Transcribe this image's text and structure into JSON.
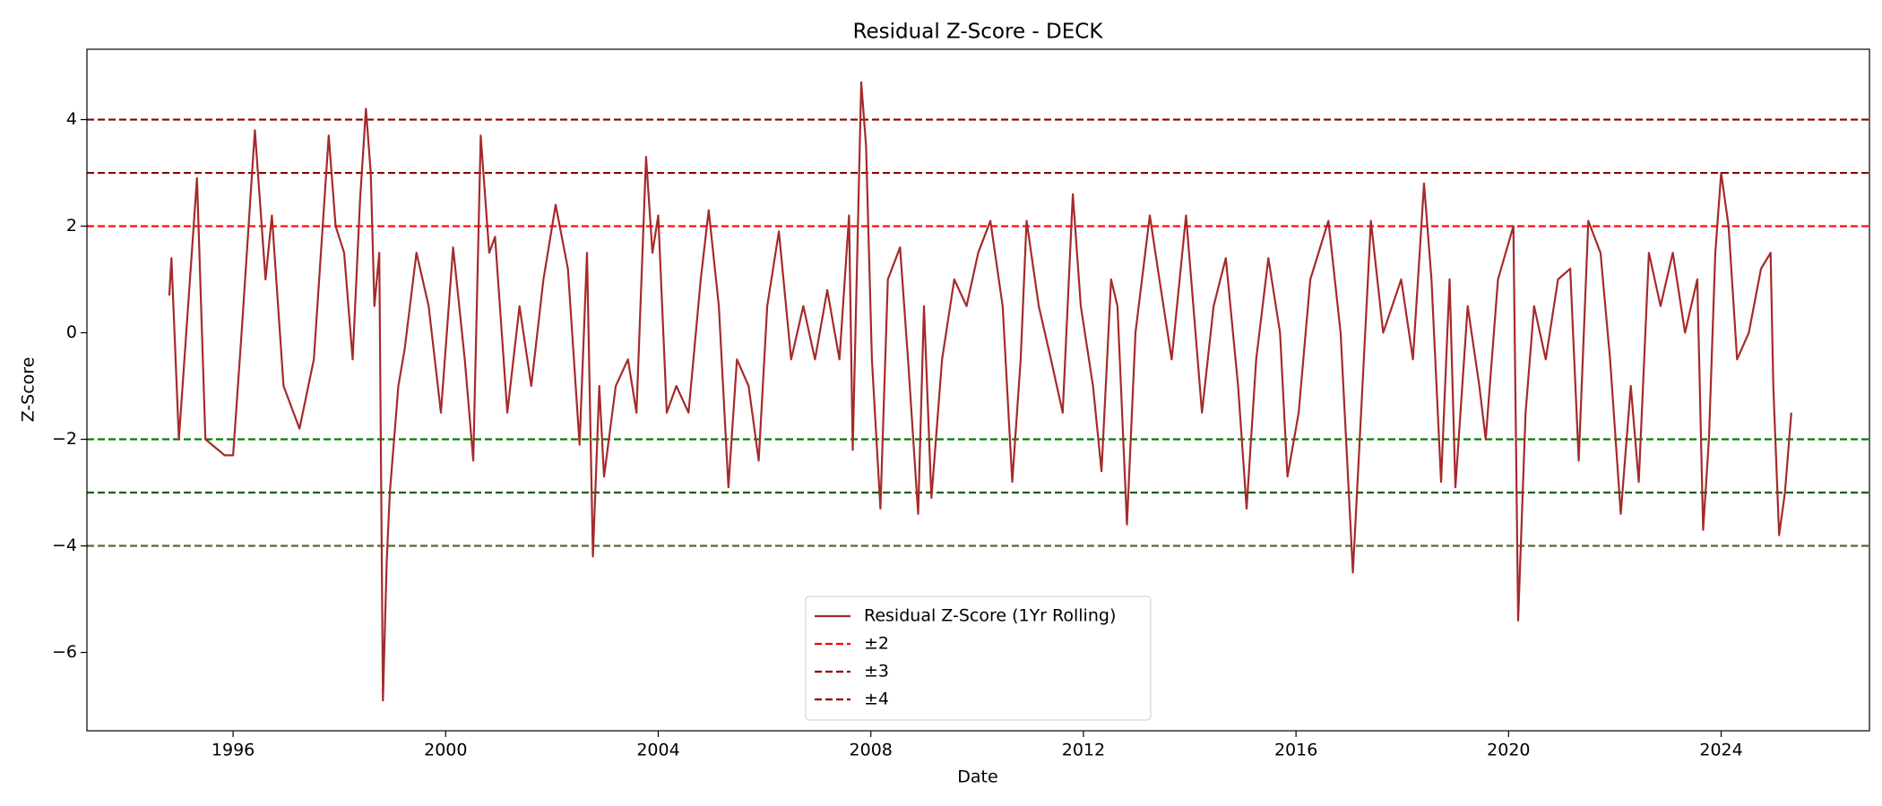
{
  "chart_data": {
    "type": "line",
    "title": "Residual Z-Score - DECK",
    "x_label": "Date",
    "y_label": "Z-Score",
    "xlim": [
      1993.25,
      2026.79
    ],
    "ylim": [
      -7.47,
      5.32
    ],
    "xticks": [
      1996,
      2000,
      2004,
      2008,
      2012,
      2016,
      2020,
      2024
    ],
    "yticks": [
      {
        "value": -6,
        "label": "−6"
      },
      {
        "value": -4,
        "label": "−4"
      },
      {
        "value": -2,
        "label": "−2"
      },
      0,
      2,
      4
    ],
    "legend": "lower center",
    "series": [
      {
        "name": "Residual Z-Score (1Yr Rolling)",
        "color": "#a52a2a",
        "x": [
          1994.8,
          1994.84,
          1994.98,
          1995.32,
          1995.48,
          1995.84,
          1996.0,
          1996.16,
          1996.41,
          1996.61,
          1996.73,
          1996.95,
          1997.25,
          1997.52,
          1997.8,
          1997.93,
          1998.09,
          1998.25,
          1998.39,
          1998.5,
          1998.59,
          1998.66,
          1998.75,
          1998.82,
          1998.89,
          1998.95,
          1999.11,
          1999.23,
          1999.45,
          1999.68,
          1999.91,
          2000.14,
          2000.36,
          2000.52,
          2000.66,
          2000.82,
          2000.93,
          2001.16,
          2001.39,
          2001.61,
          2001.84,
          2002.07,
          2002.3,
          2002.52,
          2002.66,
          2002.77,
          2002.89,
          2002.98,
          2003.2,
          2003.43,
          2003.59,
          2003.77,
          2003.89,
          2004.0,
          2004.16,
          2004.34,
          2004.57,
          2004.8,
          2004.95,
          2005.14,
          2005.32,
          2005.48,
          2005.7,
          2005.89,
          2006.05,
          2006.27,
          2006.5,
          2006.73,
          2006.95,
          2007.18,
          2007.41,
          2007.59,
          2007.66,
          2007.82,
          2007.91,
          2008.02,
          2008.18,
          2008.32,
          2008.55,
          2008.7,
          2008.89,
          2009.0,
          2009.14,
          2009.34,
          2009.57,
          2009.8,
          2010.02,
          2010.25,
          2010.48,
          2010.66,
          2010.82,
          2010.93,
          2011.16,
          2011.39,
          2011.61,
          2011.8,
          2011.95,
          2012.18,
          2012.34,
          2012.52,
          2012.64,
          2012.82,
          2012.98,
          2013.25,
          2013.43,
          2013.66,
          2013.93,
          2014.11,
          2014.23,
          2014.45,
          2014.68,
          2014.91,
          2015.07,
          2015.25,
          2015.48,
          2015.7,
          2015.84,
          2016.05,
          2016.27,
          2016.61,
          2016.84,
          2017.07,
          2017.25,
          2017.41,
          2017.64,
          2017.98,
          2018.2,
          2018.41,
          2018.55,
          2018.73,
          2018.89,
          2019.0,
          2019.23,
          2019.45,
          2019.57,
          2019.8,
          2020.09,
          2020.18,
          2020.32,
          2020.48,
          2020.7,
          2020.93,
          2021.16,
          2021.32,
          2021.5,
          2021.73,
          2021.91,
          2022.11,
          2022.3,
          2022.45,
          2022.64,
          2022.86,
          2023.09,
          2023.32,
          2023.55,
          2023.66,
          2023.77,
          2023.89,
          2024.0,
          2024.14,
          2024.3,
          2024.52,
          2024.75,
          2024.93,
          2024.98,
          2025.09,
          2025.2,
          2025.32
        ],
        "values": [
          0.7,
          1.4,
          -2.0,
          2.9,
          -2.0,
          -2.3,
          -2.3,
          0.0,
          3.8,
          1.0,
          2.2,
          -1.0,
          -1.8,
          -0.5,
          3.7,
          2.0,
          1.5,
          -0.5,
          2.5,
          4.2,
          3.0,
          0.5,
          1.5,
          -6.9,
          -4.3,
          -3.0,
          -1.0,
          -0.3,
          1.5,
          0.5,
          -1.5,
          1.6,
          -0.5,
          -2.4,
          3.7,
          1.5,
          1.8,
          -1.5,
          0.5,
          -1.0,
          1.0,
          2.4,
          1.2,
          -2.1,
          1.5,
          -4.2,
          -1.0,
          -2.7,
          -1.0,
          -0.5,
          -1.5,
          3.3,
          1.5,
          2.2,
          -1.5,
          -1.0,
          -1.5,
          1.0,
          2.3,
          0.5,
          -2.9,
          -0.5,
          -1.0,
          -2.4,
          0.5,
          1.9,
          -0.5,
          0.5,
          -0.5,
          0.8,
          -0.5,
          2.2,
          -2.2,
          4.7,
          3.5,
          -0.5,
          -3.3,
          1.0,
          1.6,
          -0.5,
          -3.4,
          0.5,
          -3.1,
          -0.5,
          1.0,
          0.5,
          1.5,
          2.1,
          0.5,
          -2.8,
          -0.5,
          2.1,
          0.5,
          -0.5,
          -1.5,
          2.6,
          0.5,
          -1.0,
          -2.6,
          1.0,
          0.5,
          -3.6,
          0.0,
          2.2,
          1.0,
          -0.5,
          2.2,
          0.0,
          -1.5,
          0.5,
          1.4,
          -1.0,
          -3.3,
          -0.5,
          1.4,
          0.0,
          -2.7,
          -1.5,
          1.0,
          2.1,
          0.0,
          -4.5,
          -1.0,
          2.1,
          0.0,
          1.0,
          -0.5,
          2.8,
          1.0,
          -2.8,
          1.0,
          -2.9,
          0.5,
          -1.0,
          -2.0,
          1.0,
          2.0,
          -5.4,
          -1.5,
          0.5,
          -0.5,
          1.0,
          1.2,
          -2.4,
          2.1,
          1.5,
          -0.5,
          -3.4,
          -1.0,
          -2.8,
          1.5,
          0.5,
          1.5,
          0.0,
          1.0,
          -3.7,
          -2.0,
          1.5,
          3.0,
          2.0,
          -0.5,
          0.0,
          1.2,
          1.5,
          -1.0,
          -3.8,
          -3.0,
          -1.5
        ]
      }
    ],
    "reference_lines": [
      {
        "name": "±2",
        "color": "red",
        "levels": [
          2,
          -2
        ],
        "level_colors": [
          "red",
          "green"
        ]
      },
      {
        "name": "±3",
        "color": "#8b0000",
        "levels": [
          3,
          -3
        ],
        "level_colors": [
          "#8b0000",
          "#006400"
        ]
      },
      {
        "name": "±4",
        "color": "#8b0000",
        "levels": [
          4,
          -4
        ],
        "level_colors": [
          "#8b0000",
          "#556b2f"
        ]
      }
    ]
  }
}
